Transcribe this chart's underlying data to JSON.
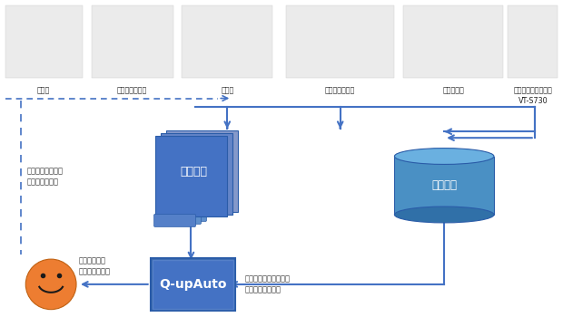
{
  "bg_color": "#ffffff",
  "blue_dark": "#1f4e79",
  "blue_mid": "#4472c4",
  "blue_line": "#4472c4",
  "blue_dashed": "#4472c4",
  "blue_db": "#4472c4",
  "blue_db_light": "#6fa0d8",
  "blue_db_dark": "#2e5fa3",
  "blue_stack_back": "#5b8fcf",
  "blue_stack_mid": "#4a7bbf",
  "orange": "#ed7d31",
  "machine_labels": [
    "印刷機",
    "印刷後検査装置",
    "実装機",
    "実装後検査装置",
    "リフロー炉",
    "リフロー後検査装置\nVT-S730"
  ],
  "note1": "通知内容を頼りに\n実装機のメンテ",
  "note2": "実装機起因の\n異常検知・通知",
  "note3": "実装情報と品質情報を\nリンク＆変動管理",
  "db_box_label": "実装情報",
  "db2_label": "品質情報",
  "qup_label": "Q-upAuto"
}
